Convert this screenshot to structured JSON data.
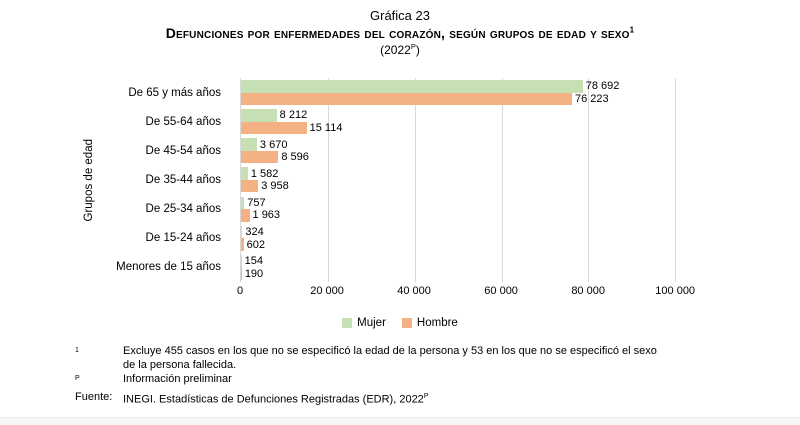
{
  "header": {
    "chart_number": "Gráfica 23",
    "title": "Defunciones por enfermedades del corazón, según grupos de edad y sexo",
    "title_footnote_marker": "1",
    "subtitle_prefix": "(2022",
    "subtitle_superscript": "P",
    "subtitle_suffix": ")"
  },
  "chart_data": {
    "type": "bar",
    "orientation": "horizontal",
    "title": "Defunciones por enfermedades del corazón, según grupos de edad y sexo (2022, preliminar)",
    "xlabel": "",
    "ylabel": "Grupos de edad",
    "categories": [
      "De 65 y más años",
      "De 55-64 años",
      "De 45-54 años",
      "De 35-44 años",
      "De 25-34 años",
      "De 15-24 años",
      "Menores de 15 años"
    ],
    "series": [
      {
        "name": "Mujer",
        "color": "#C6E0B4",
        "values": [
          78692,
          8212,
          3670,
          1582,
          757,
          324,
          154
        ],
        "labels": [
          "78 692",
          "8 212",
          "3 670",
          "1 582",
          "757",
          "324",
          "154"
        ]
      },
      {
        "name": "Hombre",
        "color": "#F4B183",
        "values": [
          76223,
          15114,
          8596,
          3958,
          1963,
          602,
          190
        ],
        "labels": [
          "76 223",
          "15 114",
          "8 596",
          "3 958",
          "1 963",
          "602",
          "190"
        ]
      }
    ],
    "x_ticks": [
      {
        "value": 0,
        "label": "0"
      },
      {
        "value": 20000,
        "label": "20 000"
      },
      {
        "value": 40000,
        "label": "40 000"
      },
      {
        "value": 60000,
        "label": "60 000"
      },
      {
        "value": 80000,
        "label": "80 000"
      },
      {
        "value": 100000,
        "label": "100 000"
      }
    ],
    "xlim": [
      0,
      108000
    ],
    "grid": "vertical",
    "gridline_color": "#D9D9D9",
    "legend_position": "bottom"
  },
  "legend": {
    "items": [
      {
        "label": "Mujer",
        "color": "#C6E0B4"
      },
      {
        "label": "Hombre",
        "color": "#F4B183"
      }
    ]
  },
  "footnotes": {
    "items": [
      {
        "marker": "1",
        "text": "Excluye 455 casos en los que no se especificó la edad de la persona y 53 en los que no se especificó el sexo de la persona fallecida."
      },
      {
        "marker": "P",
        "text": "Información preliminar"
      }
    ],
    "source_label": "Fuente:",
    "source_text": "INEGI. Estadísticas de Defunciones Registradas (EDR), 2022",
    "source_superscript": "P"
  }
}
